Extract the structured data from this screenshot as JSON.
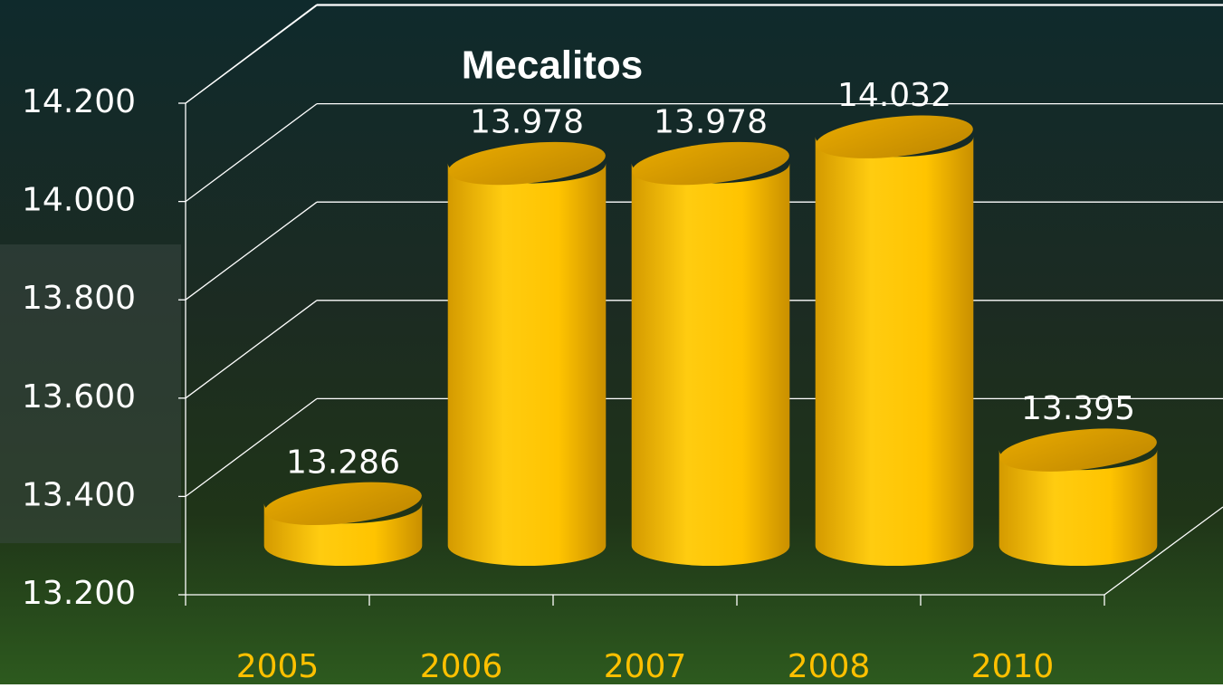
{
  "chart_data": {
    "type": "bar",
    "title": "Mecalitos",
    "categories": [
      "2005",
      "2006",
      "2007",
      "2008",
      "2010"
    ],
    "values": [
      13286,
      13978,
      13978,
      14032,
      13395
    ],
    "value_labels": [
      "13.286",
      "13.978",
      "13.978",
      "14.032",
      "13.395"
    ],
    "color": "#ffc000",
    "ylim": [
      13200,
      14200
    ],
    "yticks": [
      {
        "value": 13200,
        "label": "13.200"
      },
      {
        "value": 13400,
        "label": "13.400"
      },
      {
        "value": 13600,
        "label": "13.600"
      },
      {
        "value": 13800,
        "label": "13.800"
      },
      {
        "value": 14000,
        "label": "14.000"
      },
      {
        "value": 14200,
        "label": "14.200"
      }
    ],
    "grid": true
  }
}
